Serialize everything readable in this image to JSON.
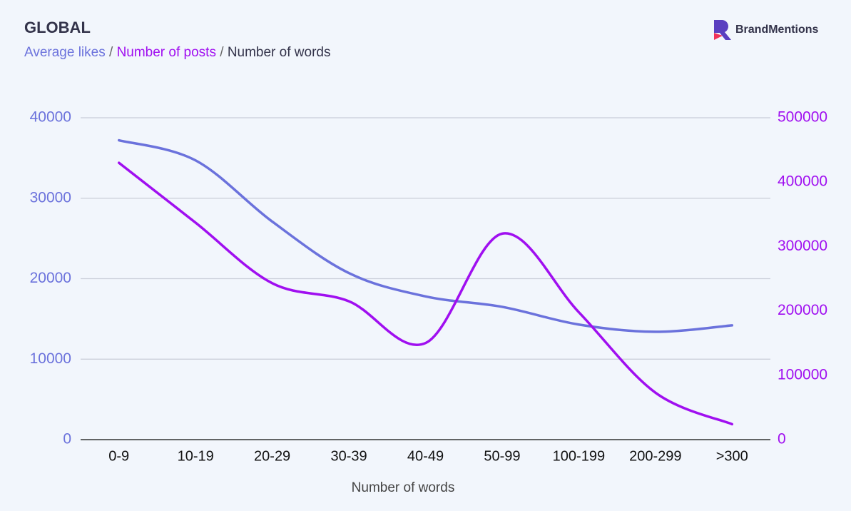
{
  "chart_data": {
    "type": "line",
    "title": "GLOBAL",
    "logo": "BrandMentions",
    "legend_separator": "/",
    "x_label": "Number of words",
    "categories": [
      "0-9",
      "10-19",
      "20-29",
      "30-39",
      "40-49",
      "50-99",
      "100-199",
      "200-299",
      ">300"
    ],
    "series": [
      {
        "name": "Average likes",
        "color": "#6b72dc",
        "values": [
          37200,
          34700,
          27100,
          20700,
          17800,
          16500,
          14300,
          13400,
          14200
        ]
      },
      {
        "name": "Number of posts",
        "color": "#a00ff0",
        "axis": "y2",
        "values": [
          430000,
          337000,
          243000,
          215000,
          150000,
          320000,
          198000,
          73000,
          24000
        ]
      }
    ],
    "ylim": [
      0,
      40000
    ],
    "yticks": [
      0,
      10000,
      20000,
      30000,
      40000
    ],
    "y2lim": [
      0,
      500000
    ],
    "y2ticks": [
      0,
      100000,
      200000,
      300000,
      400000,
      500000
    ],
    "grid": true
  }
}
